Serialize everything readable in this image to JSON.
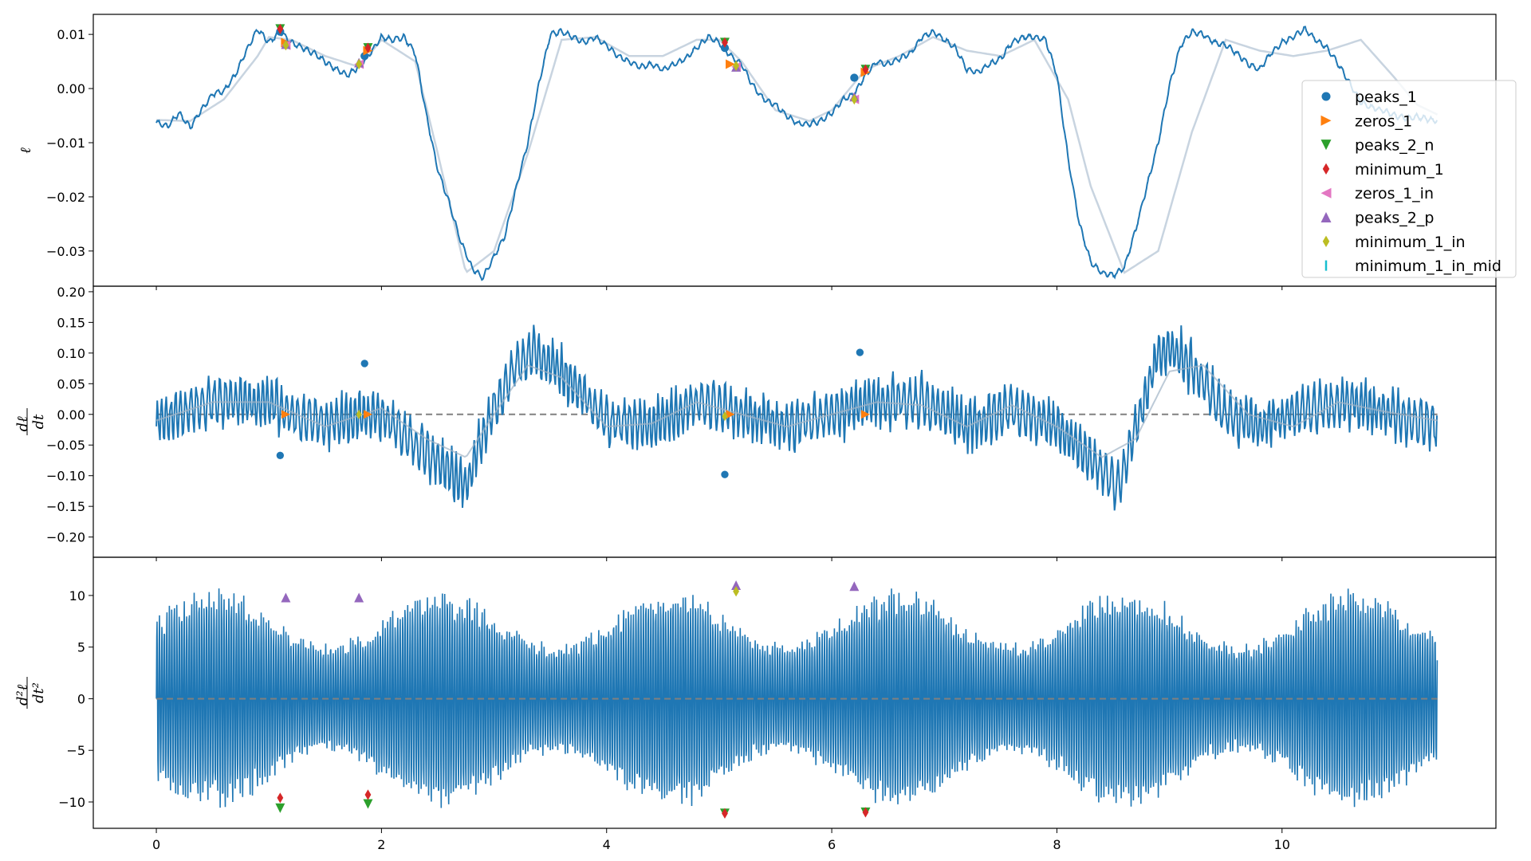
{
  "figure": {
    "background": "#ffffff"
  },
  "chart_data": [
    {
      "type": "line",
      "panel": "top",
      "title": "",
      "xlabel": "",
      "ylabel": "ℓ",
      "xlim": [
        -0.56,
        11.9
      ],
      "ylim": [
        -0.0365,
        0.0137
      ],
      "yticks": [
        0.01,
        0.0,
        -0.01,
        -0.02,
        -0.03
      ],
      "ytick_labels": [
        "0.01",
        "0.00",
        "−0.01",
        "−0.02",
        "−0.03"
      ],
      "grid": false,
      "smooth_x": [
        0,
        0.3,
        0.6,
        0.9,
        1.0,
        1.2,
        1.5,
        1.8,
        2.0,
        2.3,
        2.5,
        2.75,
        3.0,
        3.3,
        3.6,
        3.9,
        4.2,
        4.5,
        4.8,
        5.0,
        5.2,
        5.5,
        5.8,
        6.0,
        6.3,
        6.6,
        6.9,
        7.2,
        7.5,
        7.8,
        8.1,
        8.3,
        8.6,
        8.9,
        9.2,
        9.5,
        9.8,
        10.1,
        10.4,
        10.7,
        11.0,
        11.2,
        11.4
      ],
      "smooth_y": [
        -0.0058,
        -0.006,
        -0.002,
        0.006,
        0.0095,
        0.009,
        0.006,
        0.004,
        0.009,
        0.005,
        -0.012,
        -0.034,
        -0.03,
        -0.012,
        0.009,
        0.0095,
        0.006,
        0.006,
        0.009,
        0.009,
        0.005,
        -0.004,
        -0.006,
        -0.004,
        0.0035,
        0.006,
        0.0095,
        0.007,
        0.006,
        0.009,
        -0.002,
        -0.018,
        -0.034,
        -0.03,
        -0.008,
        0.009,
        0.007,
        0.006,
        0.007,
        0.009,
        0.002,
        -0.003,
        -0.005
      ],
      "noisy_line_x": [
        0,
        0.1,
        0.2,
        0.3,
        0.4,
        0.5,
        0.6,
        0.7,
        0.8,
        0.9,
        1.0,
        1.1,
        1.2,
        1.3,
        1.4,
        1.5,
        1.6,
        1.7,
        1.8,
        1.9,
        2.0,
        2.1,
        2.2,
        2.3,
        2.4,
        2.5,
        2.6,
        2.7,
        2.8,
        2.9,
        3.0,
        3.1,
        3.2,
        3.3,
        3.4,
        3.5,
        3.6,
        3.7,
        3.8,
        3.9,
        4.0,
        4.1,
        4.2,
        4.3,
        4.4,
        4.5,
        4.6,
        4.7,
        4.8,
        4.9,
        5.0,
        5.1,
        5.2,
        5.3,
        5.4,
        5.5,
        5.6,
        5.7,
        5.8,
        5.9,
        6.0,
        6.1,
        6.2,
        6.3,
        6.4,
        6.5,
        6.6,
        6.7,
        6.8,
        6.9,
        7.0,
        7.1,
        7.2,
        7.3,
        7.4,
        7.5,
        7.6,
        7.7,
        7.8,
        7.9,
        8.0,
        8.1,
        8.2,
        8.3,
        8.4,
        8.5,
        8.6,
        8.7,
        8.8,
        8.9,
        9.0,
        9.1,
        9.2,
        9.3,
        9.4,
        9.5,
        9.6,
        9.7,
        9.8,
        9.9,
        10.0,
        10.1,
        10.2,
        10.3,
        10.4,
        10.5,
        10.6,
        10.7,
        10.8,
        10.9,
        11.0,
        11.1,
        11.2,
        11.3,
        11.38
      ],
      "noisy_line_y": [
        -0.0062,
        -0.007,
        -0.0045,
        -0.0072,
        -0.004,
        -0.001,
        -0.0005,
        0.0025,
        0.007,
        0.011,
        0.0085,
        0.0105,
        0.0085,
        0.0075,
        0.0065,
        0.005,
        0.0035,
        0.0025,
        0.004,
        0.0065,
        0.0095,
        0.009,
        0.0095,
        0.0065,
        -0.005,
        -0.015,
        -0.021,
        -0.028,
        -0.033,
        -0.035,
        -0.031,
        -0.027,
        -0.018,
        -0.01,
        0.001,
        0.01,
        0.0105,
        0.0095,
        0.0085,
        0.0095,
        0.008,
        0.006,
        0.005,
        0.004,
        0.0045,
        0.0035,
        0.0045,
        0.0055,
        0.0075,
        0.0095,
        0.0085,
        0.006,
        0.0045,
        0.0005,
        -0.002,
        -0.003,
        -0.005,
        -0.0065,
        -0.0065,
        -0.006,
        -0.0045,
        -0.002,
        -0.001,
        0.0025,
        0.005,
        0.0045,
        0.0055,
        0.0065,
        0.0095,
        0.0105,
        0.009,
        0.0075,
        0.0035,
        0.003,
        0.0045,
        0.0055,
        0.0085,
        0.0095,
        0.0095,
        0.009,
        0.0025,
        -0.013,
        -0.025,
        -0.032,
        -0.034,
        -0.0345,
        -0.033,
        -0.026,
        -0.018,
        -0.01,
        0.0005,
        0.008,
        0.0105,
        0.01,
        0.0085,
        0.008,
        0.0065,
        0.0045,
        0.0035,
        0.0065,
        0.0085,
        0.0095,
        0.011,
        0.009,
        0.0075,
        0.0045,
        0.001,
        -0.0025,
        -0.0035,
        -0.004,
        -0.005,
        -0.0055,
        -0.0052,
        -0.0057,
        -0.006
      ],
      "markers": [
        {
          "series": "peaks_1",
          "points": [
            [
              1.1,
              0.0105
            ],
            [
              1.85,
              0.006
            ],
            [
              5.05,
              0.0075
            ],
            [
              6.2,
              0.002
            ]
          ]
        },
        {
          "series": "zeros_1",
          "points": [
            [
              1.15,
              0.0085
            ],
            [
              1.88,
              0.007
            ],
            [
              5.1,
              0.0045
            ],
            [
              6.3,
              0.003
            ]
          ]
        },
        {
          "series": "peaks_2_n",
          "points": [
            [
              1.1,
              0.011
            ],
            [
              1.88,
              0.0075
            ],
            [
              5.05,
              0.0085
            ],
            [
              6.3,
              0.0035
            ]
          ]
        },
        {
          "series": "minimum_1",
          "points": [
            [
              1.1,
              0.011
            ],
            [
              1.88,
              0.0075
            ],
            [
              5.05,
              0.0085
            ],
            [
              6.3,
              0.0035
            ]
          ]
        },
        {
          "series": "zeros_1_in",
          "points": [
            [
              1.15,
              0.008
            ],
            [
              1.8,
              0.0045
            ],
            [
              5.15,
              0.004
            ],
            [
              6.2,
              -0.002
            ]
          ]
        },
        {
          "series": "peaks_2_p",
          "points": [
            [
              1.15,
              0.0082
            ],
            [
              1.8,
              0.0048
            ],
            [
              5.15,
              0.004
            ],
            [
              6.2,
              -0.0015
            ]
          ]
        },
        {
          "series": "minimum_1_in",
          "points": [
            [
              1.15,
              0.008
            ],
            [
              1.8,
              0.0045
            ],
            [
              5.15,
              0.0042
            ],
            [
              6.2,
              -0.002
            ]
          ]
        }
      ]
    },
    {
      "type": "line",
      "panel": "middle",
      "title": "",
      "xlabel": "",
      "ylabel": "dℓ/dt",
      "xlim": [
        -0.56,
        11.9
      ],
      "ylim": [
        -0.233,
        0.209
      ],
      "yticks": [
        0.2,
        0.15,
        0.1,
        0.05,
        0.0,
        -0.05,
        -0.1,
        -0.15,
        -0.2
      ],
      "ytick_labels": [
        "0.20",
        "0.15",
        "0.10",
        "0.05",
        "0.00",
        "−0.05",
        "−0.10",
        "−0.15",
        "−0.20"
      ],
      "grid": false,
      "zero_line": 0.0,
      "smooth_x": [
        0,
        0.5,
        1.0,
        1.5,
        2.0,
        2.4,
        2.75,
        3.0,
        3.3,
        3.6,
        4.0,
        4.4,
        4.8,
        5.2,
        5.6,
        6.0,
        6.4,
        6.8,
        7.2,
        7.6,
        8.0,
        8.4,
        8.7,
        9.0,
        9.3,
        9.7,
        10.1,
        10.5,
        10.9,
        11.38
      ],
      "smooth_y": [
        -0.01,
        0.02,
        0.02,
        -0.02,
        0.01,
        -0.04,
        -0.07,
        0.0,
        0.08,
        0.06,
        -0.02,
        -0.015,
        0.02,
        0.0,
        -0.02,
        0.0,
        0.02,
        0.015,
        -0.02,
        0.015,
        -0.02,
        -0.07,
        -0.04,
        0.07,
        0.08,
        0.0,
        -0.02,
        0.02,
        0.005,
        -0.01
      ],
      "envelope_center_x": [
        0,
        0.5,
        1.0,
        1.3,
        1.6,
        2.0,
        2.3,
        2.6,
        2.75,
        2.9,
        3.2,
        3.35,
        3.6,
        4.0,
        4.4,
        4.8,
        5.2,
        5.6,
        6.0,
        6.4,
        6.8,
        7.2,
        7.6,
        8.0,
        8.2,
        8.4,
        8.55,
        8.7,
        8.9,
        9.0,
        9.2,
        9.5,
        9.8,
        10.2,
        10.6,
        11.0,
        11.38
      ],
      "envelope_center_y": [
        -0.01,
        0.02,
        0.02,
        -0.01,
        -0.01,
        0.0,
        -0.05,
        -0.09,
        -0.12,
        -0.03,
        0.08,
        0.1,
        0.07,
        -0.01,
        -0.02,
        0.02,
        0.0,
        -0.02,
        0.0,
        0.02,
        0.02,
        -0.02,
        0.01,
        -0.02,
        -0.06,
        -0.09,
        -0.12,
        -0.02,
        0.1,
        0.11,
        0.08,
        0.0,
        -0.02,
        0.01,
        0.02,
        0.0,
        -0.02
      ],
      "envelope_halfwidth": 0.045,
      "markers": [
        {
          "series": "peaks_1",
          "points": [
            [
              1.1,
              -0.067
            ],
            [
              1.85,
              0.083
            ],
            [
              5.05,
              -0.098
            ],
            [
              6.25,
              0.101
            ]
          ]
        },
        {
          "series": "zeros_1",
          "points": [
            [
              1.15,
              0.0
            ],
            [
              1.88,
              0.0
            ],
            [
              5.1,
              0.0
            ],
            [
              6.3,
              0.0
            ]
          ]
        },
        {
          "series": "minimum_1_in",
          "points": [
            [
              1.8,
              0.0
            ],
            [
              5.05,
              -0.003
            ]
          ]
        }
      ]
    },
    {
      "type": "line",
      "panel": "bottom",
      "title": "",
      "xlabel": "",
      "ylabel": "d²ℓ/dt²",
      "xlim": [
        -0.56,
        11.9
      ],
      "ylim": [
        -12.55,
        13.7
      ],
      "yticks": [
        10,
        5,
        0,
        -5,
        -10
      ],
      "ytick_labels": [
        "10",
        "5",
        "0",
        "−5",
        "−10"
      ],
      "xticks": [
        0,
        2,
        4,
        6,
        8,
        10
      ],
      "xtick_labels": [
        "0",
        "2",
        "4",
        "6",
        "8",
        "10"
      ],
      "grid": false,
      "zero_line": 0.0,
      "oscillation": {
        "amplitude_min": 8.5,
        "amplitude_max": 12.5,
        "x_start": 0,
        "x_end": 11.38
      },
      "markers": [
        {
          "series": "peaks_2_p",
          "points": [
            [
              1.15,
              9.8
            ],
            [
              1.8,
              9.8
            ],
            [
              5.15,
              11.0
            ],
            [
              6.2,
              10.9
            ]
          ]
        },
        {
          "series": "peaks_2_n",
          "points": [
            [
              1.1,
              -10.6
            ],
            [
              1.88,
              -10.2
            ],
            [
              5.05,
              -11.1
            ],
            [
              6.3,
              -11.0
            ]
          ]
        },
        {
          "series": "minimum_1",
          "points": [
            [
              1.1,
              -9.6
            ],
            [
              1.88,
              -9.3
            ],
            [
              5.05,
              -11.1
            ],
            [
              6.3,
              -11.0
            ]
          ]
        },
        {
          "series": "minimum_1_in",
          "points": [
            [
              5.15,
              10.4
            ]
          ]
        }
      ]
    }
  ],
  "legend": {
    "placement": "top-right",
    "items": [
      {
        "label": "peaks_1",
        "marker": "circle",
        "color": "#1f77b4"
      },
      {
        "label": "zeros_1",
        "marker": "triangle-right",
        "color": "#ff7f0e"
      },
      {
        "label": "peaks_2_n",
        "marker": "triangle-down",
        "color": "#2ca02c"
      },
      {
        "label": "minimum_1",
        "marker": "thin-diamond",
        "color": "#d62728"
      },
      {
        "label": "zeros_1_in",
        "marker": "triangle-left",
        "color": "#e377c2"
      },
      {
        "label": "peaks_2_p",
        "marker": "triangle-up",
        "color": "#9467bd"
      },
      {
        "label": "minimum_1_in",
        "marker": "thin-diamond",
        "color": "#bcbd22"
      },
      {
        "label": "minimum_1_in_mid",
        "marker": "vline",
        "color": "#17becf"
      }
    ]
  },
  "colors": {
    "main_line": "#1f77b4",
    "smooth_line": "#c8d4e0",
    "zero_line": "#808080",
    "axes": "#000000"
  }
}
